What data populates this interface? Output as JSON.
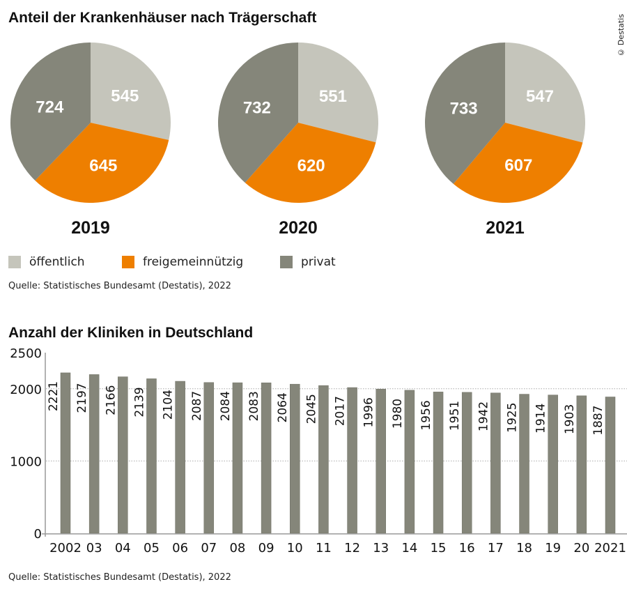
{
  "copyright": "© Destatis",
  "chart_data": [
    {
      "type": "pie",
      "title": "Anteil der Krankenhäuser nach Trägerschaft",
      "legend": [
        "öffentlich",
        "freigemeinnützig",
        "privat"
      ],
      "colors": [
        "#c5c5bb",
        "#ee7f00",
        "#85867a"
      ],
      "pies": [
        {
          "label": "2019",
          "values": [
            545,
            645,
            724
          ]
        },
        {
          "label": "2020",
          "values": [
            551,
            620,
            732
          ]
        },
        {
          "label": "2021",
          "values": [
            547,
            607,
            733
          ]
        }
      ],
      "source": "Quelle: Statistisches Bundesamt (Destatis), 2022"
    },
    {
      "type": "bar",
      "title": "Anzahl der Kliniken in Deutschland",
      "categories": [
        "2002",
        "03",
        "04",
        "05",
        "06",
        "07",
        "08",
        "09",
        "10",
        "11",
        "12",
        "13",
        "14",
        "15",
        "16",
        "17",
        "18",
        "19",
        "20",
        "2021"
      ],
      "values": [
        2221,
        2197,
        2166,
        2139,
        2104,
        2087,
        2084,
        2083,
        2064,
        2045,
        2017,
        1996,
        1980,
        1956,
        1951,
        1942,
        1925,
        1914,
        1903,
        1887
      ],
      "ylim": [
        0,
        2500
      ],
      "yticks": [
        "0",
        "1000",
        "2000",
        "2500"
      ],
      "grid": true,
      "color": "#85867a",
      "source": "Quelle: Statistisches Bundesamt (Destatis), 2022"
    }
  ]
}
